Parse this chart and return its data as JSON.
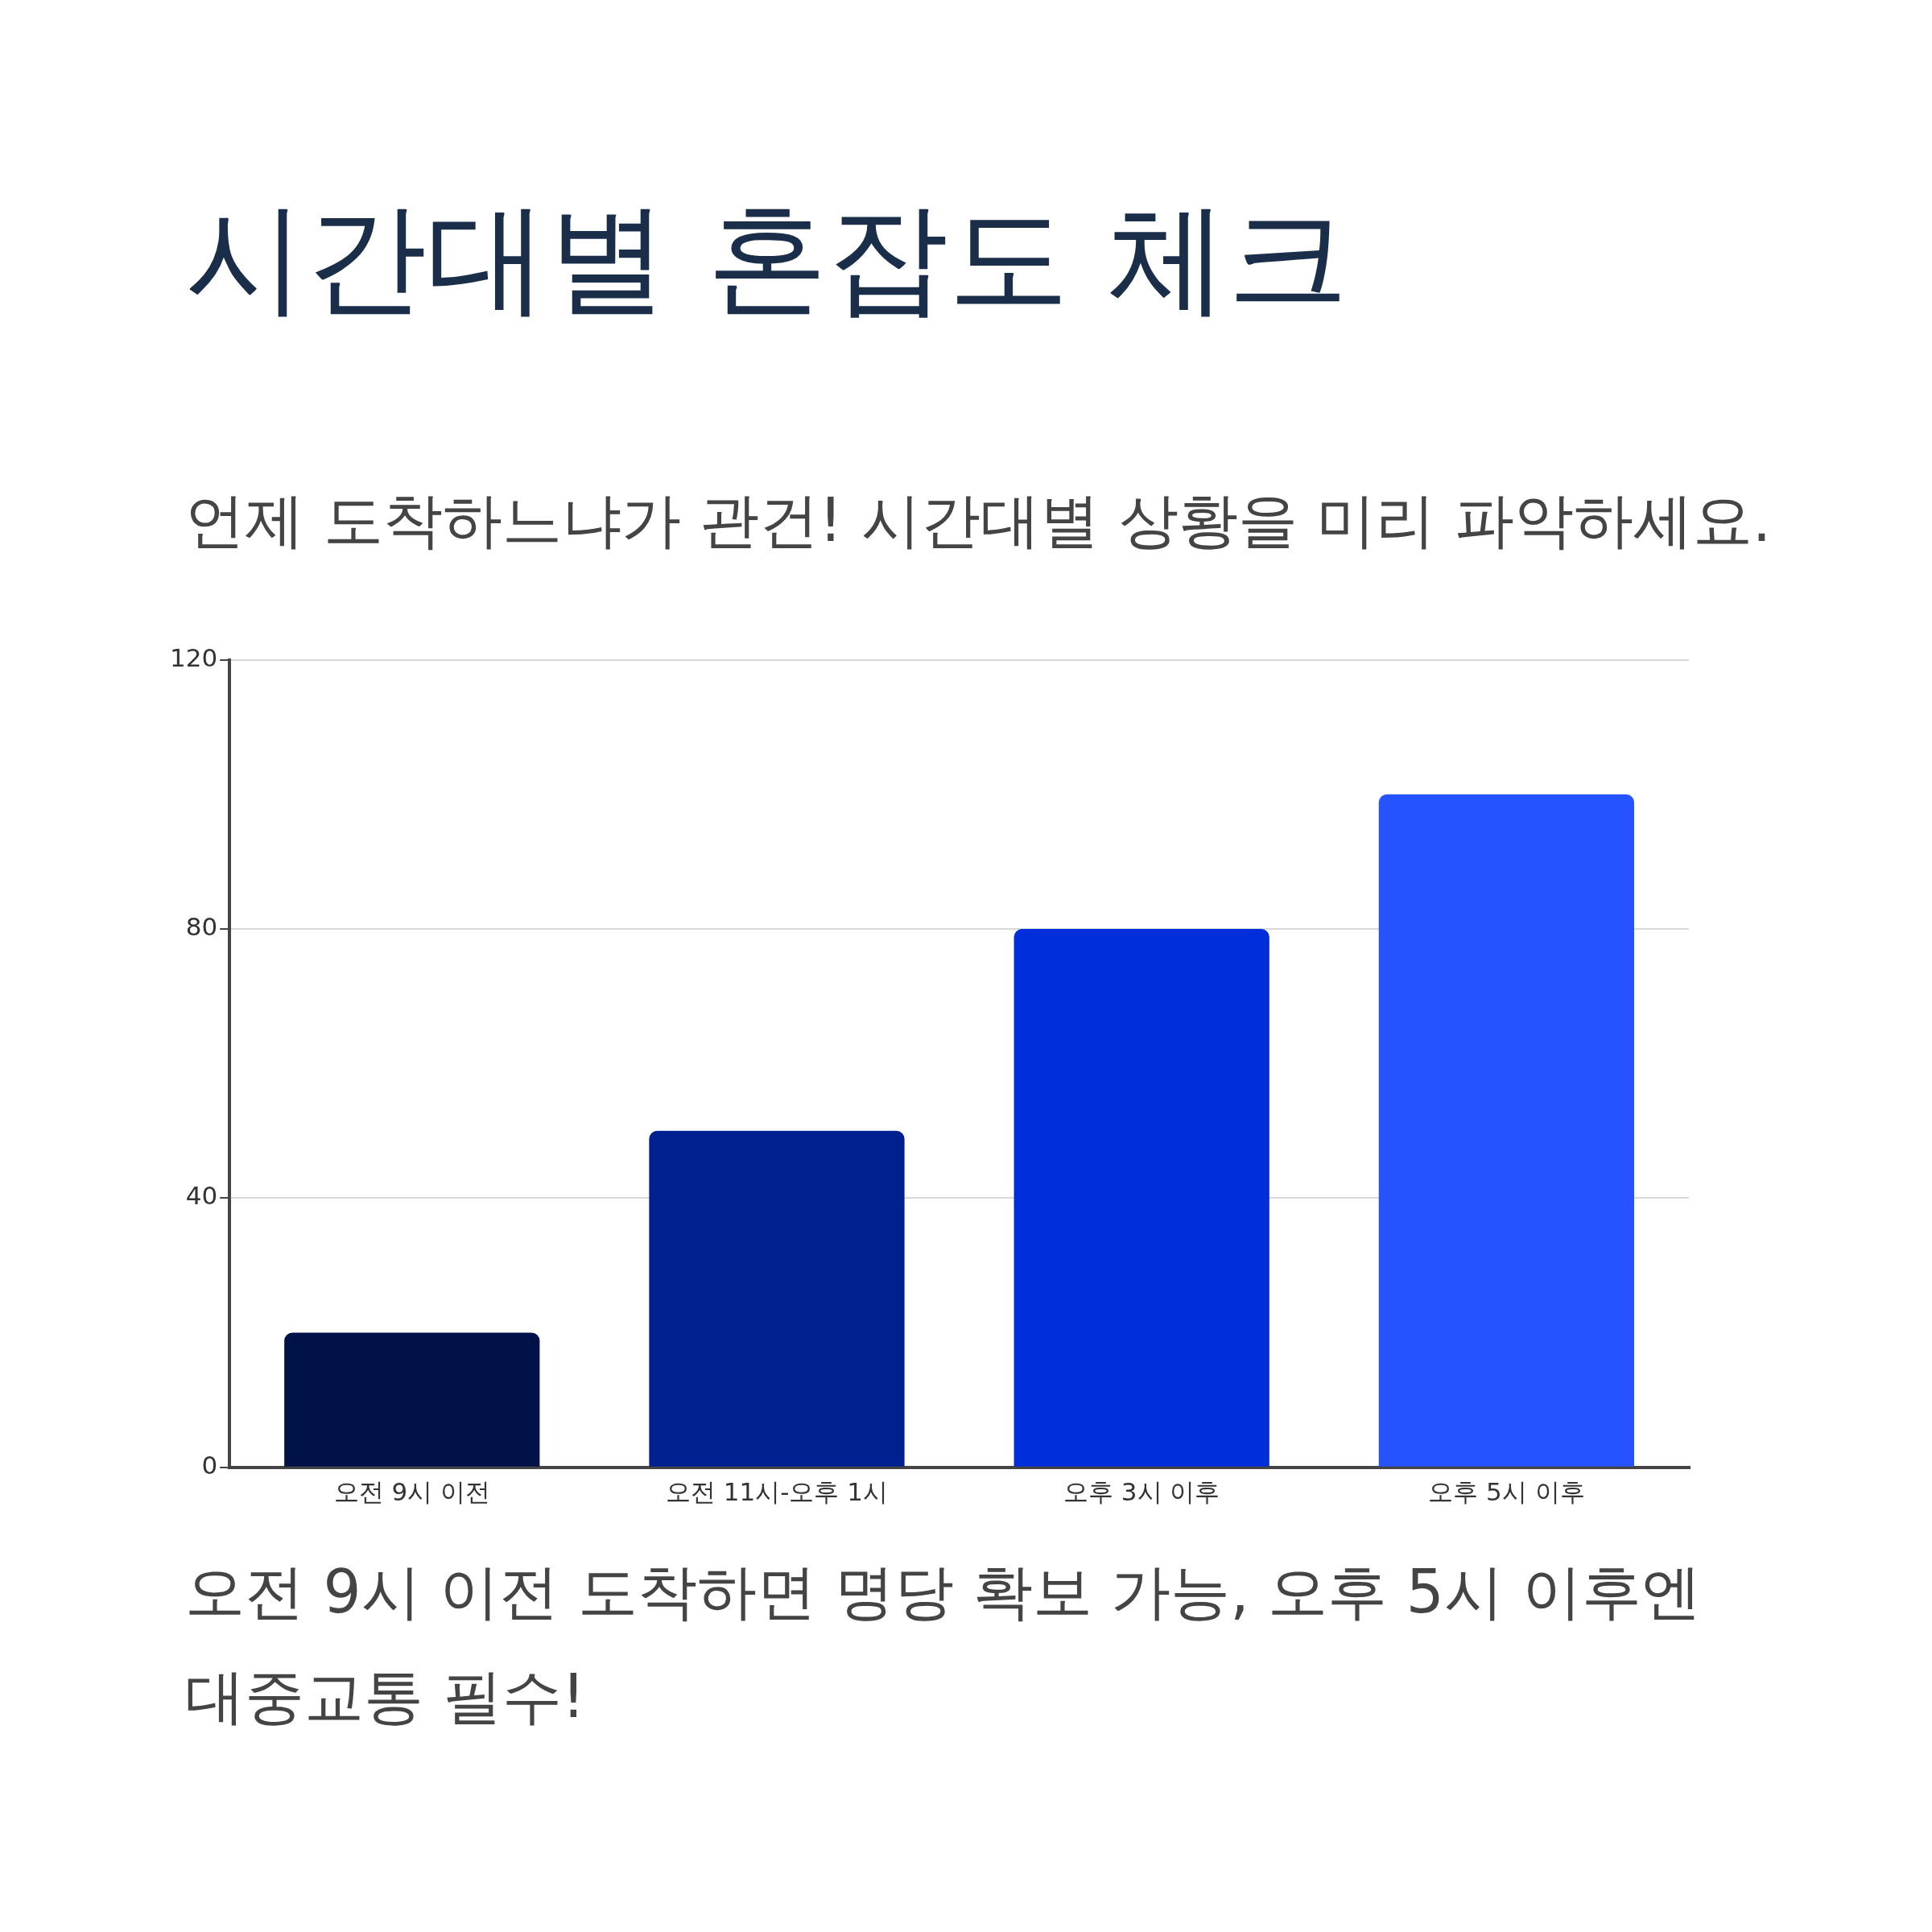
{
  "chart_data": {
    "type": "bar",
    "title": "시간대별 혼잡도 체크",
    "subtitle": "언제 도착하느냐가 관건! 시간대별 상황을 미리 파악하세요.",
    "categories": [
      "오전 9시 이전",
      "오전 11시-오후 1시",
      "오후 3시 이후",
      "오후 5시 이후"
    ],
    "values": [
      20,
      50,
      80,
      100
    ],
    "colors": [
      "#001248",
      "#00208f",
      "#002edb",
      "#2453ff"
    ],
    "ylim": [
      0,
      120
    ],
    "yticks": [
      0,
      40,
      80,
      120
    ],
    "grid": "y",
    "legend": false,
    "annotations": [
      "오전 9시 이전 도착하면 명당 확보 가능, 오후 5시 이후엔 대중교통 필수!"
    ]
  }
}
